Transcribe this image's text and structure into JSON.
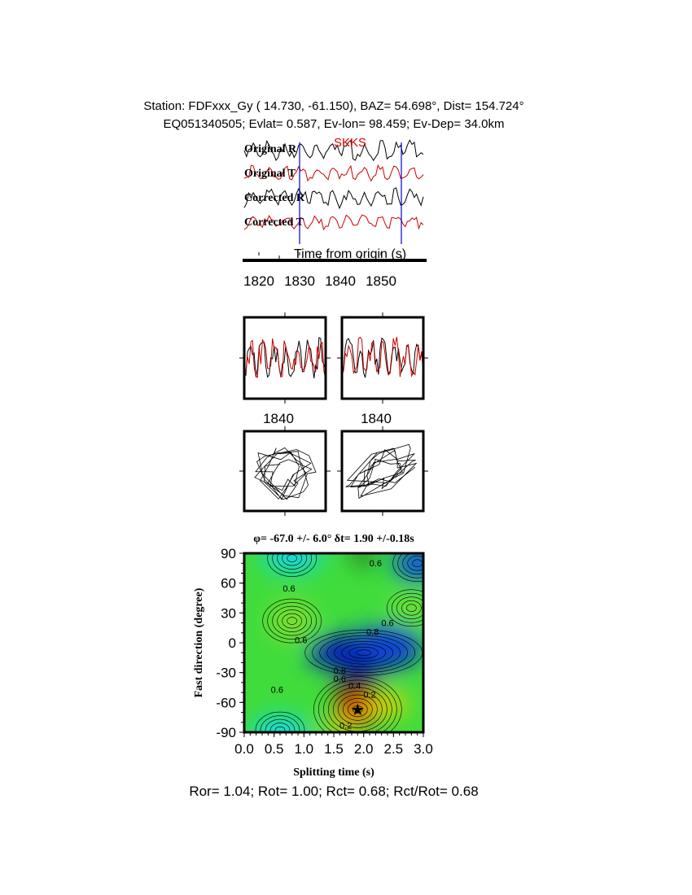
{
  "header": {
    "line1": "Station: FDFxxx_Gy (  14.730,  -61.150), BAZ=   54.698°, Dist=  154.724°",
    "line2": "EQ051340505; Evlat=   0.587, Ev-lon=  98.459; Ev-Dep= 34.0km"
  },
  "traces": {
    "labels": [
      "Original R",
      "Original T",
      "Corrected R",
      "Corrected T"
    ],
    "colors": [
      "#000000",
      "#cc0000",
      "#000000",
      "#cc0000"
    ],
    "phase": "SKKS",
    "phase_color": "#dd0000",
    "window_marker_color": "#0000cc",
    "window_start_s": 1830,
    "window_end_s": 1855,
    "xlabel": "Time from origin (s)",
    "xticks": [
      "1820",
      "1830",
      "1840",
      "1850"
    ]
  },
  "waveform_panels": {
    "tick_labels": [
      "1840",
      "1840"
    ]
  },
  "footer": "Ror= 1.04; Rot= 1.00; Rct= 0.68; Rct/Rot= 0.68",
  "chart_data": {
    "type": "heatmap",
    "subtype": "contour",
    "title": "φ= -67.0 +/- 6.0° δt= 1.90 +/-0.18s",
    "xlabel": "Splitting time (s)",
    "ylabel": "Fast direction (degree)",
    "xlim": [
      0.0,
      3.0
    ],
    "ylim": [
      -90,
      90
    ],
    "xticks": [
      "0.0",
      "0.5",
      "1.0",
      "1.5",
      "2.0",
      "2.5",
      "3.0"
    ],
    "yticks": [
      "90",
      "60",
      "30",
      "0",
      "-30",
      "-60",
      "-90"
    ],
    "best_fit": {
      "phi_deg": -67.0,
      "phi_err_deg": 6.0,
      "dt_s": 1.9,
      "dt_err_s": 0.18,
      "marker": "star"
    },
    "contour_labels": [
      {
        "text": "0.6",
        "x": 0.75,
        "y": 55
      },
      {
        "text": "0.6",
        "x": 2.2,
        "y": 80
      },
      {
        "text": "0.6",
        "x": 0.95,
        "y": 3
      },
      {
        "text": "0.6",
        "x": 0.55,
        "y": -47
      },
      {
        "text": "0.6",
        "x": 2.4,
        "y": 20
      },
      {
        "text": "0.8",
        "x": 2.15,
        "y": 11
      },
      {
        "text": "0.8",
        "x": 1.6,
        "y": -28
      },
      {
        "text": "0.6",
        "x": 1.6,
        "y": -36
      },
      {
        "text": "0.4",
        "x": 1.85,
        "y": -43
      },
      {
        "text": "0.2",
        "x": 2.1,
        "y": -52
      },
      {
        "text": "0.2",
        "x": 1.7,
        "y": -83
      }
    ],
    "colors": {
      "low": "#d40000",
      "mid": "#40e040",
      "high": "#0020d0"
    }
  }
}
